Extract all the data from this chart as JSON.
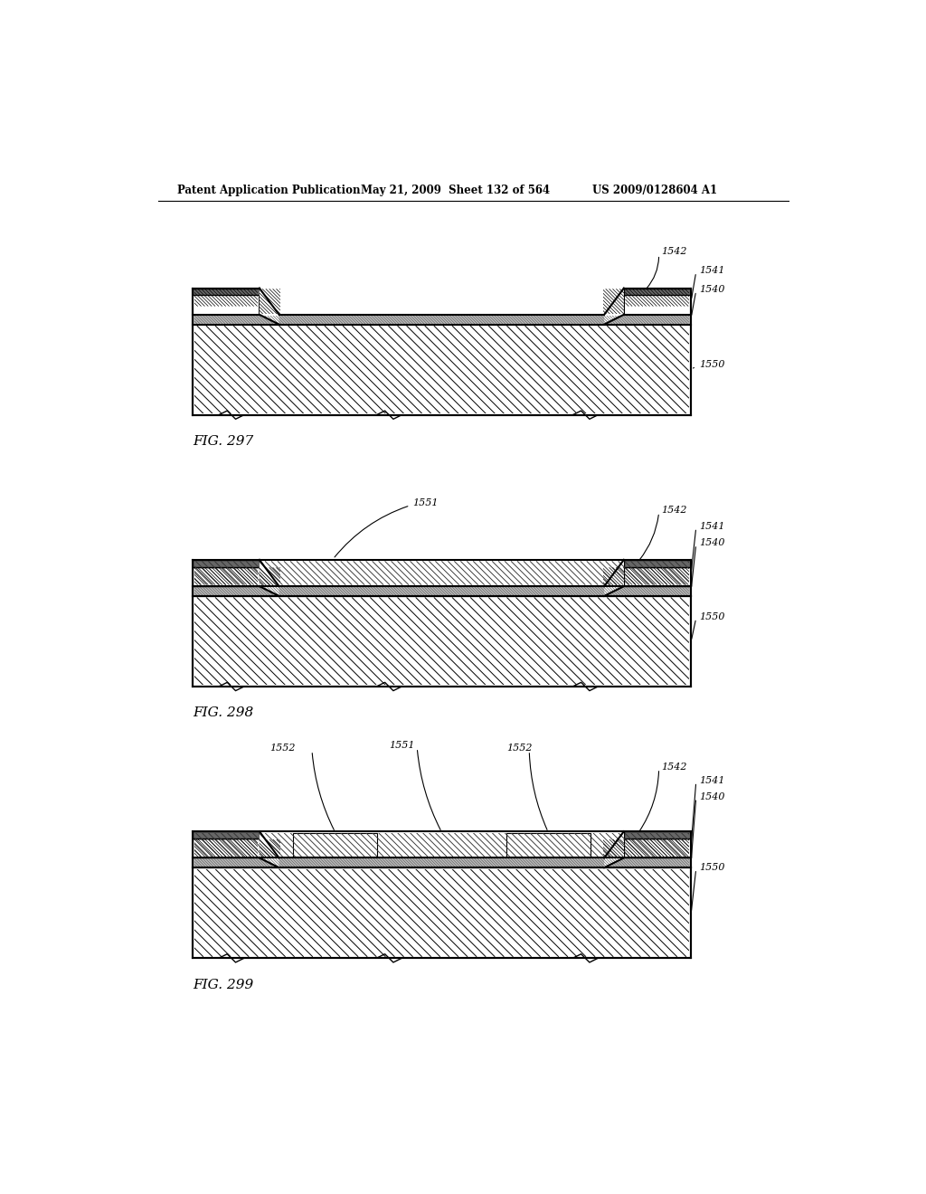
{
  "header_left": "Patent Application Publication",
  "header_center": "May 21, 2009  Sheet 132 of 564",
  "header_right": "US 2009/0128604 A1",
  "fig297_label": "FIG. 297",
  "fig298_label": "FIG. 298",
  "fig299_label": "FIG. 299",
  "bg_color": "#ffffff",
  "line_color": "#000000"
}
